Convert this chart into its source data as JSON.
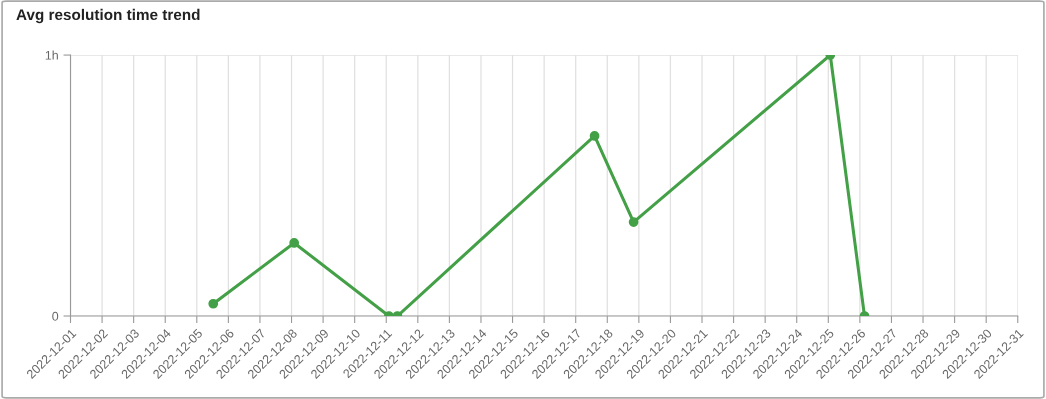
{
  "chart_data": {
    "type": "line",
    "title": "Avg resolution time trend",
    "x": [
      "2022-12-05T12:30",
      "2022-12-08T02:00",
      "2022-12-11T02:00",
      "2022-12-11T08:30",
      "2022-12-17T14:20",
      "2022-12-18T20:00",
      "2022-12-25T01:30",
      "2022-12-26T03:30"
    ],
    "series": [
      {
        "color": "#43a047",
        "values": [
          0.047,
          0.28,
          0,
          0,
          0.69,
          0.36,
          1,
          0
        ]
      }
    ],
    "xlim": [
      "2022-12-01",
      "2022-12-31"
    ],
    "xticks": [
      "2022-12-01",
      "2022-12-02",
      "2022-12-03",
      "2022-12-04",
      "2022-12-05",
      "2022-12-06",
      "2022-12-07",
      "2022-12-08",
      "2022-12-09",
      "2022-12-10",
      "2022-12-11",
      "2022-12-12",
      "2022-12-13",
      "2022-12-14",
      "2022-12-15",
      "2022-12-16",
      "2022-12-17",
      "2022-12-18",
      "2022-12-19",
      "2022-12-20",
      "2022-12-21",
      "2022-12-22",
      "2022-12-23",
      "2022-12-24",
      "2022-12-25",
      "2022-12-26",
      "2022-12-27",
      "2022-12-28",
      "2022-12-29",
      "2022-12-30",
      "2022-12-31"
    ],
    "ylim": [
      0,
      1
    ],
    "yticks": [
      0,
      {
        "value": 1,
        "label": "1h"
      }
    ],
    "grid": true,
    "marker": "circle",
    "line_style": "solid"
  }
}
